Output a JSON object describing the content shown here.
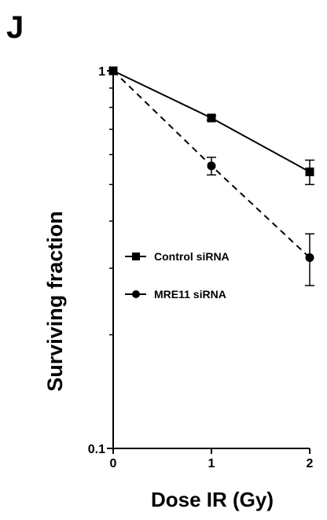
{
  "panel_label": "J",
  "chart_data": {
    "type": "line",
    "title": "",
    "xlabel": "Dose IR (Gy)",
    "ylabel": "Surviving fraction",
    "yscale": "log",
    "ylim": [
      0.1,
      1
    ],
    "xlim": [
      0,
      2
    ],
    "x_ticks": [
      "0",
      "1",
      "2"
    ],
    "y_ticks": [
      "0.1",
      "1"
    ],
    "x": [
      0,
      1,
      2
    ],
    "legend_position": "center-left",
    "grid": false,
    "series": [
      {
        "name": "Control siRNA",
        "marker": "square",
        "line_style": "solid",
        "values": [
          1.0,
          0.75,
          0.54
        ],
        "error": [
          0,
          0.01,
          0.04
        ]
      },
      {
        "name": "MRE11 siRNA",
        "marker": "circle",
        "line_style": "dashed",
        "values": [
          1.0,
          0.56,
          0.32
        ],
        "error": [
          0,
          0.03,
          0.05
        ]
      }
    ]
  }
}
